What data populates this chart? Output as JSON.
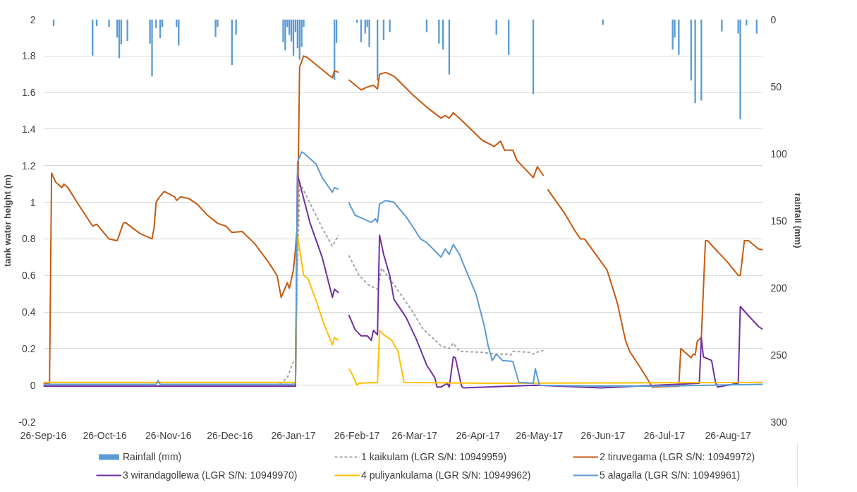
{
  "chart_data": {
    "type": "line",
    "ylabel": "tank water height (m)",
    "y2label": "rainfall (mm)",
    "xlim": [
      "2016-09-26",
      "2017-09-12"
    ],
    "xticks": [
      {
        "value": "2016-09-26",
        "label": "26-Sep-16"
      },
      {
        "value": "2016-10-26",
        "label": "26-Oct-16"
      },
      {
        "value": "2016-11-26",
        "label": "26-Nov-16"
      },
      {
        "value": "2016-12-26",
        "label": "26-Dec-16"
      },
      {
        "value": "2017-01-26",
        "label": "26-Jan-17"
      },
      {
        "value": "2017-02-26",
        "label": "26-Feb-17"
      },
      {
        "value": "2017-03-26",
        "label": "26-Mar-17"
      },
      {
        "value": "2017-04-26",
        "label": "26-Apr-17"
      },
      {
        "value": "2017-05-26",
        "label": "26-May-17"
      },
      {
        "value": "2017-06-26",
        "label": "26-Jun-17"
      },
      {
        "value": "2017-07-26",
        "label": "26-Jul-17"
      },
      {
        "value": "2017-08-26",
        "label": "26-Aug-17"
      }
    ],
    "ylim": [
      -0.2,
      2
    ],
    "yticks": [
      -0.2,
      0,
      0.2,
      0.4,
      0.6,
      0.8,
      1,
      1.2,
      1.4,
      1.6,
      1.8,
      2
    ],
    "y2lim": [
      300,
      0
    ],
    "y2ticks": [
      0,
      50,
      100,
      150,
      200,
      250,
      300
    ],
    "grid": "y",
    "legend": "bottom",
    "series": [
      {
        "name": "Rainfall (mm)",
        "type": "bar",
        "axis": "y2",
        "color": "#5b9bd5",
        "x": [
          "2016-10-01",
          "2016-10-20",
          "2016-10-22",
          "2016-10-28",
          "2016-11-01",
          "2016-11-02",
          "2016-11-03",
          "2016-11-06",
          "2016-11-17",
          "2016-11-18",
          "2016-11-20",
          "2016-11-22",
          "2016-11-23",
          "2016-11-30",
          "2016-12-01",
          "2016-12-19",
          "2016-12-20",
          "2016-12-27",
          "2016-12-29",
          "2017-01-21",
          "2017-01-22",
          "2017-01-23",
          "2017-01-24",
          "2017-01-25",
          "2017-01-26",
          "2017-01-27",
          "2017-01-28",
          "2017-01-29",
          "2017-01-30",
          "2017-01-31",
          "2017-02-15",
          "2017-02-16",
          "2017-02-26",
          "2017-02-28",
          "2017-03-02",
          "2017-03-03",
          "2017-03-04",
          "2017-03-08",
          "2017-03-11",
          "2017-03-14",
          "2017-04-01",
          "2017-04-07",
          "2017-04-09",
          "2017-04-12",
          "2017-05-05",
          "2017-05-11",
          "2017-05-23",
          "2017-06-26",
          "2017-07-30",
          "2017-07-31",
          "2017-08-02",
          "2017-08-08",
          "2017-08-10",
          "2017-08-13",
          "2017-08-23",
          "2017-08-31",
          "2017-09-01",
          "2017-09-04",
          "2017-09-09"
        ],
        "values": [
          5,
          27,
          5,
          5.5,
          13.5,
          29,
          18.5,
          16,
          18,
          42.5,
          6.5,
          14,
          5.5,
          5.5,
          19.5,
          13,
          5.5,
          34,
          11.5,
          17,
          23,
          5.5,
          11.5,
          16.5,
          27,
          9.5,
          21.5,
          30,
          20.5,
          5.5,
          45,
          17.5,
          2.5,
          17,
          10.5,
          5.5,
          20.5,
          45.5,
          15.5,
          9.5,
          9.5,
          18,
          22.5,
          41,
          11.5,
          26.5,
          55.5,
          4,
          22.5,
          13.5,
          26.5,
          45.5,
          62.5,
          60.5,
          9,
          10.5,
          74.5,
          4.5,
          10.5
        ]
      },
      {
        "name": "1 kaikulam (LGR S/N: 10949959)",
        "line_style": "dashed",
        "color": "#a5a5a5",
        "x": [
          "2016-09-26",
          "2017-01-18",
          "2017-01-23",
          "2017-01-26",
          "2017-01-27",
          "2017-01-29",
          "2017-02-02",
          "2017-02-09",
          "2017-02-14",
          "2017-02-17",
          "2017-02-19",
          "2017-02-22",
          "2017-02-27",
          "2017-03-04",
          "2017-03-08",
          "2017-03-10",
          "2017-03-16",
          "2017-03-25",
          "2017-03-30",
          "2017-04-08",
          "2017-04-12",
          "2017-04-14",
          "2017-04-17",
          "2017-04-28",
          "2017-05-04",
          "2017-05-10",
          "2017-05-12",
          "2017-05-13",
          "2017-05-21",
          "2017-05-23",
          "2017-05-26",
          "2017-05-28"
        ],
        "values": [
          -0.005,
          -0.005,
          0.04,
          0.13,
          0.14,
          1.11,
          1.02,
          0.86,
          0.76,
          0.82,
          null,
          0.71,
          0.6,
          0.545,
          0.525,
          0.64,
          0.55,
          0.405,
          0.31,
          0.215,
          0.2,
          0.23,
          0.185,
          0.18,
          0.17,
          0.17,
          0.165,
          0.185,
          0.18,
          0.17,
          0.185,
          0.19
        ]
      },
      {
        "name": "2 tiruvegama (LGR S/N: 10949972)",
        "color": "#c55a11",
        "x": [
          "2016-09-26",
          "2016-09-29",
          "2016-09-30",
          "2016-10-02",
          "2016-10-05",
          "2016-10-06",
          "2016-10-08",
          "2016-10-13",
          "2016-10-20",
          "2016-10-22",
          "2016-10-28",
          "2016-11-01",
          "2016-11-04",
          "2016-11-05",
          "2016-11-12",
          "2016-11-18",
          "2016-11-19",
          "2016-11-20",
          "2016-11-21",
          "2016-11-24",
          "2016-11-29",
          "2016-11-30",
          "2016-12-02",
          "2016-12-06",
          "2016-12-10",
          "2016-12-15",
          "2016-12-20",
          "2016-12-24",
          "2016-12-27",
          "2017-01-01",
          "2017-01-07",
          "2017-01-14",
          "2017-01-18",
          "2017-01-20",
          "2017-01-23",
          "2017-01-24",
          "2017-01-26",
          "2017-01-27",
          "2017-01-28",
          "2017-01-29",
          "2017-01-31",
          "2017-02-02",
          "2017-02-14",
          "2017-02-15",
          "2017-02-17",
          "2017-02-19",
          "2017-02-22",
          "2017-02-28",
          "2017-03-03",
          "2017-03-06",
          "2017-03-08",
          "2017-03-09",
          "2017-03-12",
          "2017-03-16",
          "2017-03-25",
          "2017-04-01",
          "2017-04-08",
          "2017-04-10",
          "2017-04-12",
          "2017-04-14",
          "2017-04-17",
          "2017-04-28",
          "2017-05-04",
          "2017-05-07",
          "2017-05-09",
          "2017-05-13",
          "2017-05-15",
          "2017-05-23",
          "2017-05-25",
          "2017-05-28",
          "2017-05-29",
          "2017-05-30",
          "2017-06-07",
          "2017-06-12",
          "2017-06-15",
          "2017-06-17",
          "2017-06-28",
          "2017-07-03",
          "2017-07-07",
          "2017-07-09",
          "2017-07-14",
          "2017-07-19",
          "2017-07-20",
          "2017-08-02",
          "2017-08-03",
          "2017-08-05",
          "2017-08-08",
          "2017-08-09",
          "2017-08-10",
          "2017-08-11",
          "2017-08-13",
          "2017-08-15",
          "2017-08-16",
          "2017-08-26",
          "2017-08-31",
          "2017-09-01",
          "2017-09-03",
          "2017-09-05",
          "2017-09-10",
          "2017-09-12"
        ],
        "values": [
          0.01,
          0.01,
          1.16,
          1.11,
          1.08,
          1.1,
          1.08,
          0.99,
          0.87,
          0.88,
          0.8,
          0.79,
          0.885,
          0.89,
          0.83,
          0.8,
          0.86,
          1.0,
          1.02,
          1.06,
          1.03,
          1.01,
          1.03,
          1.02,
          0.99,
          0.93,
          0.885,
          0.87,
          0.835,
          0.84,
          0.775,
          0.67,
          0.6,
          0.48,
          0.56,
          0.53,
          0.63,
          0.745,
          0.89,
          1.74,
          1.8,
          1.79,
          1.68,
          1.72,
          1.71,
          null,
          1.67,
          1.615,
          1.63,
          1.64,
          1.62,
          1.7,
          1.71,
          1.69,
          1.59,
          1.52,
          1.46,
          1.475,
          1.46,
          1.49,
          1.46,
          1.34,
          1.305,
          1.335,
          1.285,
          1.285,
          1.23,
          1.135,
          1.195,
          1.145,
          null,
          1.07,
          0.945,
          0.85,
          0.8,
          0.8,
          0.63,
          0.45,
          0.245,
          0.185,
          0.1,
          0.01,
          -0.01,
          -0.005,
          0.2,
          0.18,
          0.15,
          0.17,
          0.165,
          0.24,
          0.26,
          0.79,
          0.79,
          0.67,
          0.6,
          0.6,
          0.79,
          0.79,
          0.745,
          0.74
        ]
      },
      {
        "name": "3 wirandagollewa (LGR S/N: 10949970)",
        "color": "#7030a0",
        "x": [
          "2016-09-26",
          "2017-01-20",
          "2017-01-27",
          "2017-01-28",
          "2017-02-03",
          "2017-02-09",
          "2017-02-14",
          "2017-02-15",
          "2017-02-17",
          "2017-02-19",
          "2017-02-22",
          "2017-02-25",
          "2017-02-28",
          "2017-03-03",
          "2017-03-05",
          "2017-03-06",
          "2017-03-08",
          "2017-03-09",
          "2017-03-11",
          "2017-03-14",
          "2017-03-16",
          "2017-03-22",
          "2017-03-27",
          "2017-04-01",
          "2017-04-05",
          "2017-04-06",
          "2017-04-08",
          "2017-04-11",
          "2017-04-12",
          "2017-04-14",
          "2017-04-15",
          "2017-04-18",
          "2017-04-19",
          "2017-05-24",
          "2017-06-25",
          "2017-07-22",
          "2017-08-12",
          "2017-08-13",
          "2017-08-14",
          "2017-08-18",
          "2017-08-20",
          "2017-08-21",
          "2017-08-31",
          "2017-09-01",
          "2017-09-05",
          "2017-09-10",
          "2017-09-12"
        ],
        "values": [
          -0.005,
          -0.005,
          -0.005,
          1.15,
          0.89,
          0.7,
          0.48,
          0.525,
          0.505,
          null,
          0.385,
          0.305,
          0.27,
          0.27,
          0.245,
          0.3,
          0.275,
          0.82,
          0.715,
          0.6,
          0.47,
          0.37,
          0.25,
          0.11,
          0.04,
          -0.01,
          -0.01,
          0.01,
          -0.01,
          0.155,
          0.15,
          -0.005,
          -0.015,
          0.0,
          -0.015,
          0.0,
          0.01,
          0.26,
          0.155,
          0.135,
          0.01,
          -0.01,
          0.01,
          0.43,
          0.38,
          0.32,
          0.305
        ]
      },
      {
        "name": "4 puliyankulama (LGR S/N: 10949962)",
        "color": "#ffc000",
        "x": [
          "2016-09-26",
          "2017-01-27",
          "2017-01-28",
          "2017-01-31",
          "2017-02-02",
          "2017-02-06",
          "2017-02-10",
          "2017-02-14",
          "2017-02-15",
          "2017-02-17",
          "2017-02-19",
          "2017-02-22",
          "2017-02-23",
          "2017-02-26",
          "2017-02-27",
          "2017-03-03",
          "2017-03-08",
          "2017-03-09",
          "2017-03-11",
          "2017-03-15",
          "2017-03-18",
          "2017-03-21",
          "2017-05-01",
          "2017-09-12"
        ],
        "values": [
          0.015,
          0.015,
          0.82,
          0.6,
          0.585,
          0.465,
          0.33,
          0.22,
          0.26,
          0.245,
          null,
          0.09,
          0.075,
          0.0,
          0.01,
          0.013,
          0.013,
          0.3,
          0.275,
          0.245,
          0.185,
          0.015,
          0.01,
          0.015
        ]
      },
      {
        "name": "5 alagalla (LGR S/N: 10949961)",
        "color": "#5b9bd5",
        "x": [
          "2016-09-26",
          "2016-11-20",
          "2016-11-21",
          "2016-11-22",
          "2017-01-26",
          "2017-01-27",
          "2017-01-28",
          "2017-01-30",
          "2017-01-31",
          "2017-02-06",
          "2017-02-09",
          "2017-02-14",
          "2017-02-15",
          "2017-02-17",
          "2017-02-19",
          "2017-02-22",
          "2017-02-25",
          "2017-03-01",
          "2017-03-05",
          "2017-03-07",
          "2017-03-08",
          "2017-03-09",
          "2017-03-12",
          "2017-03-16",
          "2017-03-22",
          "2017-03-25",
          "2017-03-29",
          "2017-04-01",
          "2017-04-08",
          "2017-04-10",
          "2017-04-12",
          "2017-04-14",
          "2017-04-17",
          "2017-04-19",
          "2017-04-25",
          "2017-04-29",
          "2017-05-01",
          "2017-05-03",
          "2017-05-05",
          "2017-05-08",
          "2017-05-13",
          "2017-05-16",
          "2017-05-23",
          "2017-05-24",
          "2017-05-26",
          "2017-06-20",
          "2017-07-25",
          "2017-09-12"
        ],
        "values": [
          0.005,
          0.005,
          0.025,
          0.005,
          0.005,
          0.01,
          1.22,
          1.275,
          1.27,
          1.21,
          1.135,
          1.055,
          1.08,
          1.07,
          null,
          1.0,
          0.93,
          0.91,
          0.89,
          0.91,
          0.89,
          0.99,
          1.01,
          1.0,
          0.92,
          0.87,
          0.8,
          0.78,
          0.7,
          0.745,
          0.715,
          0.77,
          0.715,
          0.66,
          0.5,
          0.33,
          0.215,
          0.135,
          0.17,
          0.135,
          0.13,
          0.015,
          0.01,
          0.09,
          0.0,
          -0.005,
          -0.005,
          0.005
        ]
      }
    ]
  }
}
